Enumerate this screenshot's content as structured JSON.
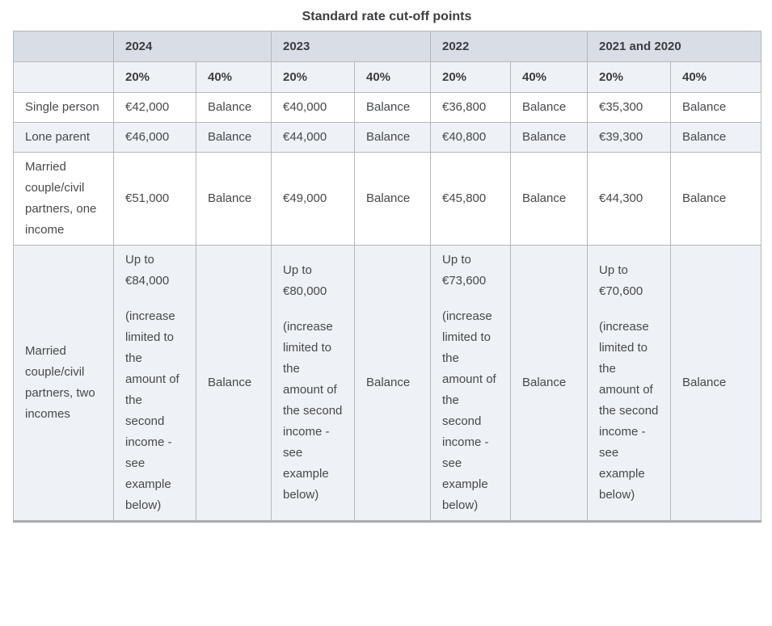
{
  "title": "Standard rate cut-off points",
  "colors": {
    "year_header_bg": "#d9dee6",
    "rate_header_bg": "#eef1f5",
    "alt_row_bg": "#eef1f5",
    "row_bg": "#ffffff",
    "border": "#b4b8bd",
    "bottom_border": "#a9adb2",
    "text": "#47494c"
  },
  "table": {
    "year_headers": [
      "2024",
      "2023",
      "2022",
      "2021 and 2020"
    ],
    "rate_headers": [
      "20%",
      "40%",
      "20%",
      "40%",
      "20%",
      "40%",
      "20%",
      "40%"
    ],
    "rows": [
      {
        "label": "Single person",
        "cells": [
          "€42,000",
          "Balance",
          "€40,000",
          "Balance",
          "€36,800",
          "Balance",
          "€35,300",
          "Balance"
        ]
      },
      {
        "label": "Lone parent",
        "cells": [
          "€46,000",
          "Balance",
          "€44,000",
          "Balance",
          "€40,800",
          "Balance",
          "€39,300",
          "Balance"
        ]
      },
      {
        "label": "Married couple/civil partners, one income",
        "cells": [
          "€51,000",
          "Balance",
          "€49,000",
          "Balance",
          "€45,800",
          "Balance",
          "€44,300",
          "Balance"
        ]
      },
      {
        "label": "Married couple/civil partners, two incomes",
        "cells": [
          [
            "Up to €84,000",
            "(increase limited to the amount of the second income - see example below)"
          ],
          "Balance",
          [
            "Up to €80,000",
            "(increase limited to the amount of the second income - see example below)"
          ],
          "Balance",
          [
            "Up to €73,600",
            "(increase limited to the amount of the second income - see example below)"
          ],
          "Balance",
          [
            "Up to €70,600",
            "(increase limited to the amount of the second income - see example below)"
          ],
          "Balance"
        ]
      }
    ]
  }
}
